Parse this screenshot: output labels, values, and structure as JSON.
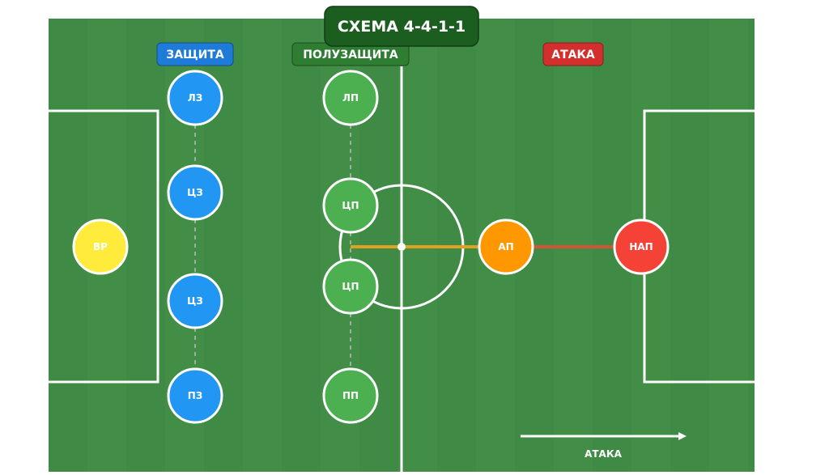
{
  "title": "СХЕМА 4-4-1-1",
  "lines": {
    "defense": {
      "label": "ЗАЩИТА",
      "color": "#1E7BD8"
    },
    "midfield": {
      "label": "ПОЛУЗАЩИТА",
      "color": "#2E7D32"
    },
    "attack": {
      "label": "АТАКА",
      "color": "#D32F2F"
    }
  },
  "players": [
    {
      "role": "ВР",
      "color": "#FFEB3B"
    },
    {
      "role": "ЛЗ",
      "color": "#2196F3"
    },
    {
      "role": "ЦЗ",
      "color": "#2196F3"
    },
    {
      "role": "ЦЗ",
      "color": "#2196F3"
    },
    {
      "role": "ПЗ",
      "color": "#2196F3"
    },
    {
      "role": "ЛП",
      "color": "#4CAF50"
    },
    {
      "role": "ЦП",
      "color": "#4CAF50"
    },
    {
      "role": "ЦП",
      "color": "#4CAF50"
    },
    {
      "role": "ПП",
      "color": "#4CAF50"
    },
    {
      "role": "АП",
      "color": "#FF9800"
    },
    {
      "role": "НАП",
      "color": "#F44336"
    }
  ],
  "direction_label": "АТАКА",
  "pitch_color": "#3F8A44"
}
